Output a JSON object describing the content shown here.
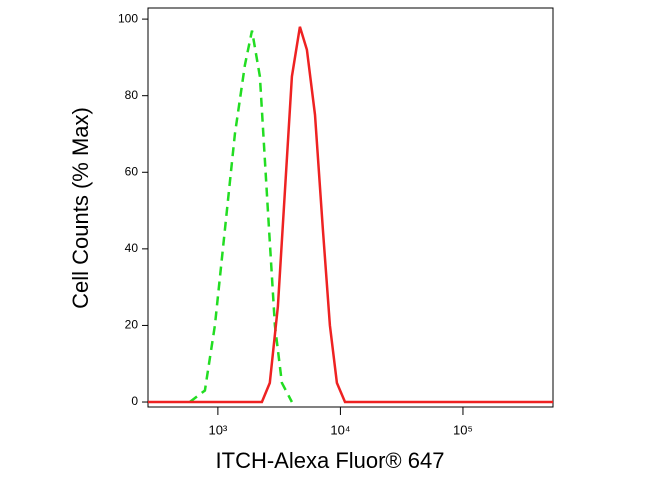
{
  "chart_data": {
    "type": "line",
    "xlabel": "ITCH-Alexa Fluor® 647",
    "ylabel": "Cell Counts (% Max)",
    "xscale": "log",
    "xlim": [
      269,
      543000
    ],
    "ylim": [
      -1.3,
      102.9
    ],
    "xticks": [
      {
        "value": 1000,
        "label": "10³"
      },
      {
        "value": 10000,
        "label": "10⁴"
      },
      {
        "value": 100000,
        "label": "10⁵"
      }
    ],
    "yticks": [
      0,
      20,
      40,
      60,
      80,
      100
    ],
    "series": [
      {
        "color": "#22dd22",
        "linestyle": "dashed",
        "x": [
          590,
          783,
          946,
          1140,
          1377,
          1661,
          1897,
          2203,
          2560,
          2918,
          3328,
          4016
        ],
        "values": [
          0,
          3,
          20,
          45,
          70,
          88,
          97,
          85,
          50,
          20,
          5,
          0
        ]
      },
      {
        "color": "#ee2222",
        "linestyle": "solid",
        "x": [
          269,
          2286,
          2654,
          3090,
          3524,
          4016,
          4669,
          5329,
          6197,
          7200,
          8205,
          9355,
          10890,
          543000
        ],
        "values": [
          0,
          0,
          5,
          25,
          55,
          85,
          98,
          92,
          75,
          45,
          20,
          5,
          0,
          0
        ]
      }
    ]
  }
}
